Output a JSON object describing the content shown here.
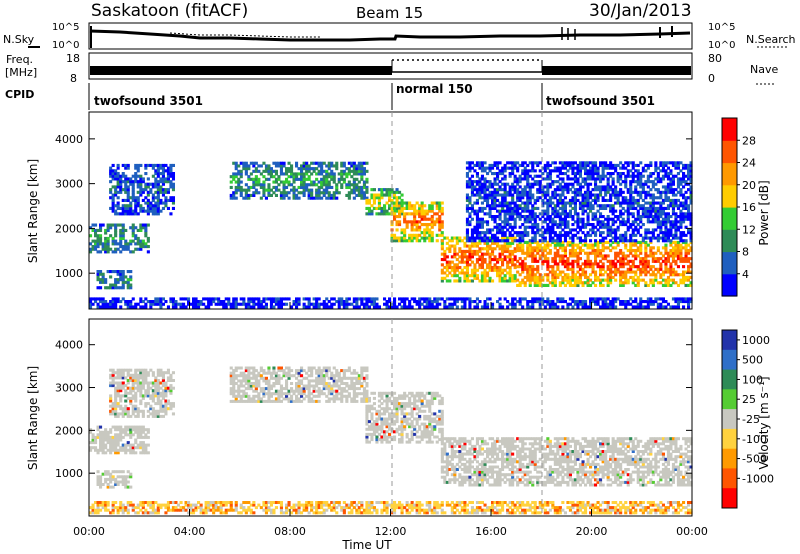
{
  "header": {
    "station": "Saskatoon (fitACF)",
    "beam": "Beam 15",
    "date": "30/Jan/2013"
  },
  "top_panels": {
    "nsky_label": "N.Sky",
    "nsky_ticks": [
      "10^5",
      "10^0"
    ],
    "nsearch_label": "N.Search",
    "nsearch_ticks": [
      "10^5",
      "10^0"
    ],
    "freq_label": "Freq.",
    "freq_unit": "[MHz]",
    "freq_ticks": [
      "18",
      "8"
    ],
    "nave_label": "Nave",
    "nave_ticks": [
      "80",
      "0"
    ],
    "cpid_label": "CPID",
    "cpid_segments": [
      {
        "label": "twofsound 3501",
        "start_h": 0,
        "end_h": 12
      },
      {
        "label": "normal 150",
        "start_h": 12,
        "end_h": 18
      },
      {
        "label": "twofsound 3501",
        "start_h": 18,
        "end_h": 24
      }
    ]
  },
  "colors": {
    "power": [
      "#0000ff",
      "#1f5fbf",
      "#2e8b57",
      "#33cc33",
      "#ffcc00",
      "#ff9900",
      "#ff5500",
      "#ff0000"
    ],
    "velocity": [
      "#2233aa",
      "#2f6fc8",
      "#2e8b57",
      "#55cc33",
      "#c8c8c0",
      "#ffd23f",
      "#ff9a00",
      "#ff5500",
      "#ff0000"
    ]
  },
  "chart_data": [
    {
      "type": "heatmap",
      "name": "power-panel",
      "xlabel": "",
      "ylabel": "Slant Range [km]",
      "xlim": [
        0,
        24
      ],
      "ylim": [
        200,
        4600
      ],
      "yticks": [
        1000,
        2000,
        3000,
        4000
      ],
      "colorbar": {
        "label": "Power [dB]",
        "ticks": [
          "4",
          "8",
          "12",
          "16",
          "20",
          "24",
          "28"
        ],
        "range": [
          0,
          32
        ]
      },
      "regions": [
        {
          "t0": 0.0,
          "t1": 2.4,
          "r0": 1450,
          "r1": 2100,
          "level": 0.35
        },
        {
          "t0": 0.3,
          "t1": 1.7,
          "r0": 650,
          "r1": 1050,
          "level": 0.3
        },
        {
          "t0": 0.8,
          "t1": 3.4,
          "r0": 2300,
          "r1": 3400,
          "level": 0.2
        },
        {
          "t0": 5.6,
          "t1": 11.0,
          "r0": 2650,
          "r1": 3450,
          "level": 0.35
        },
        {
          "t0": 11.0,
          "t1": 12.4,
          "r0": 2300,
          "r1": 2900,
          "level": 0.55
        },
        {
          "t0": 12.0,
          "t1": 14.0,
          "r0": 1700,
          "r1": 2600,
          "level": 0.8
        },
        {
          "t0": 14.0,
          "t1": 17.0,
          "r0": 800,
          "r1": 1800,
          "level": 0.85
        },
        {
          "t0": 17.0,
          "t1": 24.0,
          "r0": 700,
          "r1": 1700,
          "level": 0.9
        },
        {
          "t0": 15.0,
          "t1": 24.0,
          "r0": 1700,
          "r1": 3500,
          "level": 0.15
        },
        {
          "t0": 0.0,
          "t1": 24.0,
          "r0": 220,
          "r1": 450,
          "level": 0.1
        }
      ]
    },
    {
      "type": "heatmap",
      "name": "velocity-panel",
      "xlabel": "Time UT",
      "ylabel": "Slant Range [km]",
      "xlim": [
        0,
        24
      ],
      "ylim": [
        0,
        4600
      ],
      "yticks": [
        1000,
        2000,
        3000,
        4000
      ],
      "xticks": [
        "00:00",
        "04:00",
        "08:00",
        "12:00",
        "16:00",
        "20:00",
        "00:00"
      ],
      "colorbar": {
        "label": "Velocity [m s⁻¹]",
        "ticks": [
          "1000",
          "500",
          "100",
          "25",
          "-25",
          "-100",
          "-500",
          "-1000"
        ]
      },
      "regions": [
        {
          "t0": 0.0,
          "t1": 2.4,
          "r0": 1450,
          "r1": 2100,
          "level": 0.45
        },
        {
          "t0": 0.3,
          "t1": 1.7,
          "r0": 650,
          "r1": 1050,
          "level": 0.45
        },
        {
          "t0": 0.8,
          "t1": 3.4,
          "r0": 2300,
          "r1": 3400,
          "level": 0.5
        },
        {
          "t0": 5.6,
          "t1": 11.0,
          "r0": 2650,
          "r1": 3450,
          "level": 0.5
        },
        {
          "t0": 11.0,
          "t1": 14.0,
          "r0": 1700,
          "r1": 2900,
          "level": 0.5
        },
        {
          "t0": 14.0,
          "t1": 24.0,
          "r0": 700,
          "r1": 1800,
          "level": 0.5
        },
        {
          "t0": 0.0,
          "t1": 24.0,
          "r0": 50,
          "r1": 350,
          "level": 0.65
        }
      ]
    }
  ]
}
